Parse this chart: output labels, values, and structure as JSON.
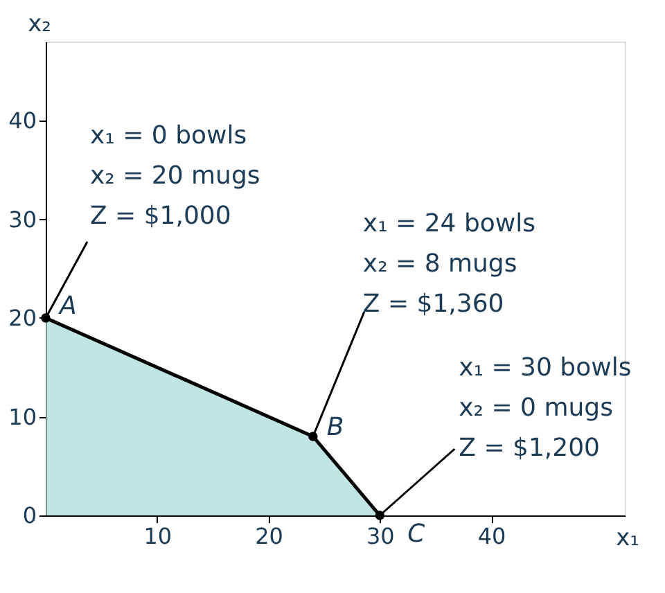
{
  "chart_data": {
    "type": "area",
    "xlabel": "x₁",
    "ylabel": "x₂",
    "x": [
      0,
      24,
      30
    ],
    "series": [
      {
        "color": "#a6dad5",
        "values": [
          20,
          8,
          0
        ]
      }
    ],
    "xlim": [
      0,
      52
    ],
    "ylim": [
      0,
      48
    ],
    "xticks": [
      10,
      20,
      30,
      40
    ],
    "yticks": [
      0,
      10,
      20,
      30,
      40
    ],
    "marker": "circle",
    "grid": false,
    "annotations": [
      {
        "text": "A",
        "x": 0,
        "y": 20
      },
      {
        "text": "B",
        "x": 24,
        "y": 8
      },
      {
        "text": "C",
        "x": 30,
        "y": 0
      },
      {
        "text": "x₁ = 0 bowls\nx₂ = 20 mugs\nZ = $1,000",
        "x": 0,
        "y": 20
      },
      {
        "text": "x₁ = 24 bowls\nx₂ = 8 mugs\nZ = $1,360",
        "x": 24,
        "y": 8
      },
      {
        "text": "x₁ = 30 bowls\nx₂ = 0 mugs\nZ = $1,200",
        "x": 30,
        "y": 0
      }
    ]
  }
}
